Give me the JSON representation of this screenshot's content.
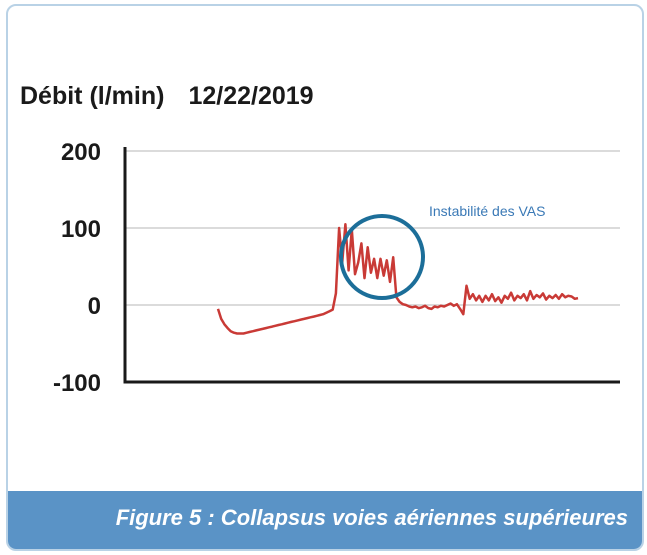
{
  "header": {
    "ylabel": "Débit (l/min)",
    "date": "12/22/2019"
  },
  "caption": "Figure  5 : Collapsus voies aériennes supérieures",
  "chart_data": {
    "type": "line",
    "title": "12/22/2019",
    "ylabel": "Débit (l/min)",
    "xlabel": "",
    "ylim": [
      -100,
      200
    ],
    "yticks": [
      "200",
      "100",
      "0",
      "-100"
    ],
    "grid": true,
    "annotation": "Instabilité des VAS",
    "series": [
      {
        "color": "#c93a36",
        "values": [
          -5,
          -18,
          -25,
          -30,
          -34,
          -36,
          -37,
          -37,
          -37,
          -36,
          -35,
          -34,
          -33,
          -32,
          -31,
          -30,
          -29,
          -28,
          -27,
          -26,
          -25,
          -24,
          -23,
          -22,
          -21,
          -20,
          -19,
          -18,
          -17,
          -16,
          -15,
          -14,
          -13,
          -12,
          -10,
          -8,
          -6,
          15,
          100,
          55,
          105,
          45,
          98,
          40,
          55,
          80,
          35,
          75,
          42,
          60,
          35,
          60,
          38,
          58,
          30,
          62,
          10,
          4,
          1,
          0,
          -2,
          -3,
          -2,
          -4,
          -3,
          -1,
          -4,
          -5,
          -2,
          -3,
          -1,
          -2,
          0,
          2,
          -1,
          1,
          -5,
          -12,
          25,
          8,
          14,
          6,
          12,
          4,
          12,
          6,
          14,
          5,
          10,
          3,
          12,
          8,
          16,
          6,
          12,
          9,
          14,
          6,
          18,
          8,
          13,
          10,
          15,
          7,
          12,
          9,
          13,
          8,
          14,
          10,
          12,
          11,
          8,
          9
        ]
      }
    ],
    "colors": {
      "line": "#c93a36",
      "annotation_circle": "#1c6e99",
      "annotation_text": "#3a79b6",
      "caption_bg": "#5a93c6",
      "frame_border": "#b9d2e6"
    }
  }
}
